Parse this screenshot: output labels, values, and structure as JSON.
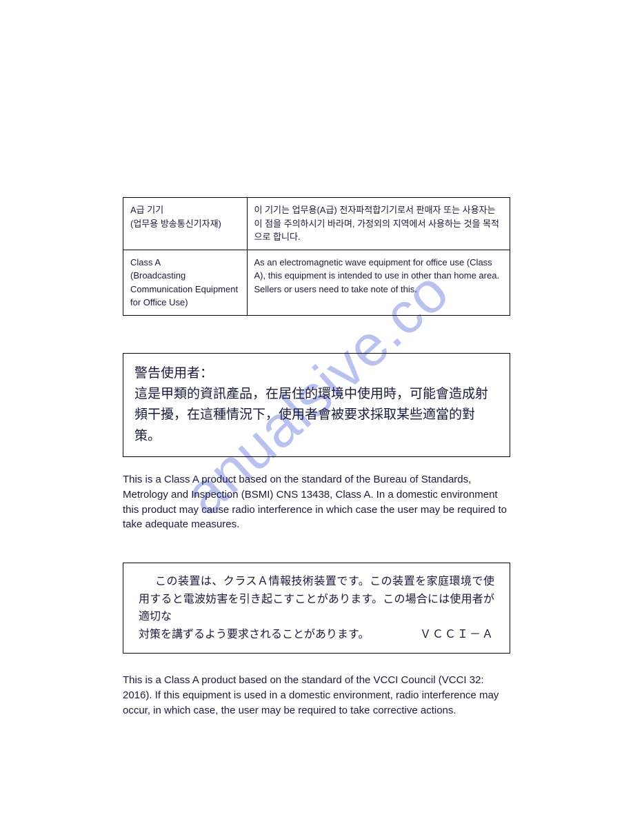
{
  "watermark": "anualsive.co",
  "table": {
    "row1": {
      "left": "A급 기기\n(업무용 방송통신기자재)",
      "right": "이 기기는 업무용(A급) 전자파적합기기로서 판매자 또는 사용자는 이 점을 주의하시기 바라며, 가정외의 지역에서 사용하는 것을 목적으로 합니다."
    },
    "row2": {
      "left": "Class A\n(Broadcasting Communication Equipment for Office Use)",
      "right": "As an electromagnetic wave equipment for office use (Class A), this equipment is intended to use in other than home area. Sellers or users need to take note of this."
    }
  },
  "box_tw": {
    "line1": "警告使用者：",
    "line2": "這是甲類的資訊產品，在居住的環境中使用時，可能會造成射頻干擾，在這種情況下，使用者會被要求採取某些適當的對策。"
  },
  "para_bsmi": "This is a Class A product based on the standard of the Bureau of Standards, Metrology and Inspection (BSMI) CNS 13438, Class A. In a domestic environment this product may cause radio interference in which case the user may be required to take adequate measures.",
  "box_jp": {
    "body": "この装置は、クラスＡ情報技術装置です。この装置を家庭環境で使用すると電波妨害を引き起こすことがあります。この場合には使用者が適切な",
    "last_text": "対策を講ずるよう要求されることがあります。",
    "last_label": "ＶＣＣＩ－Ａ"
  },
  "para_vcci": "This is a Class A product based on the standard of the VCCI Council (VCCI 32: 2016). If this equipment is used in a domestic environment, radio interference may occur, in which case, the user may be required to take corrective actions."
}
